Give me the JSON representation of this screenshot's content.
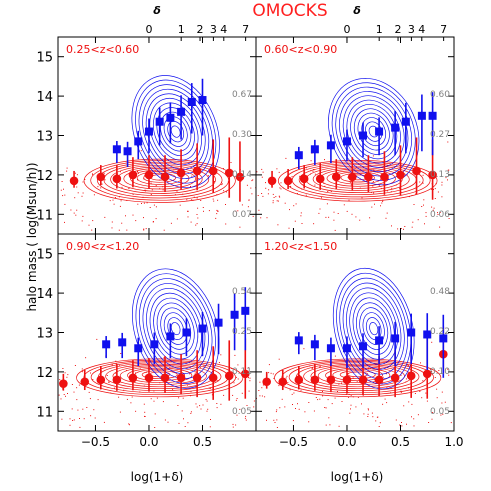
{
  "chart_data": {
    "type": "scatter",
    "title": "OMOCKS",
    "xlabel": "log(1+δ)",
    "ylabel": "halo mass ( log(Msun/h))",
    "top_axis_label": "δ",
    "top_ticks": [
      "0",
      "1",
      "2",
      "3",
      "4",
      "7"
    ],
    "top_tick_values": [
      0,
      1,
      2,
      3,
      4,
      7
    ],
    "xlim": [
      -0.85,
      1.0
    ],
    "ylim": [
      10.5,
      15.5
    ],
    "xticks": [
      -0.5,
      0.0,
      0.5,
      1.0
    ],
    "xtick_labels": [
      "−0.5",
      "0.0",
      "0.5",
      "1.0"
    ],
    "yticks": [
      11,
      12,
      13,
      14,
      15
    ],
    "ytick_labels": [
      "11",
      "12",
      "13",
      "14",
      "15"
    ],
    "colors": {
      "title": "#ff2020",
      "blue": "#1010ee",
      "red": "#ee1111",
      "frac": "#808080"
    },
    "panels": [
      {
        "label": "0.25<z<0.60",
        "fractions": [
          "0.67",
          "0.30",
          "0.14",
          "0.07"
        ],
        "blue_x": [
          -0.3,
          -0.2,
          -0.1,
          0.0,
          0.1,
          0.2,
          0.3,
          0.4,
          0.5
        ],
        "blue_y": [
          12.65,
          12.6,
          12.85,
          13.1,
          13.35,
          13.45,
          13.6,
          13.85,
          13.9
        ],
        "blue_err": [
          0.35,
          0.4,
          0.45,
          0.55,
          0.6,
          0.65,
          0.7,
          0.8,
          0.9
        ],
        "red_x": [
          -0.7,
          -0.45,
          -0.3,
          -0.15,
          0.0,
          0.15,
          0.3,
          0.45,
          0.6,
          0.75,
          0.85
        ],
        "red_y": [
          11.85,
          11.95,
          11.9,
          12.0,
          12.0,
          11.95,
          12.05,
          12.1,
          12.1,
          12.05,
          11.95
        ],
        "red_err": [
          0.25,
          0.3,
          0.35,
          0.45,
          0.5,
          0.55,
          0.6,
          0.7,
          0.8,
          0.9,
          0.9
        ],
        "blue_xs": 0.95,
        "blue_ys": 0.9,
        "blue_ang": -0.55,
        "red_xs": 1.0,
        "red_ys": 0.8
      },
      {
        "label": "0.60<z<0.90",
        "fractions": [
          "0.60",
          "0.27",
          "0.13",
          "0.06"
        ],
        "blue_x": [
          -0.45,
          -0.3,
          -0.15,
          0.0,
          0.15,
          0.3,
          0.45,
          0.55,
          0.7,
          0.8
        ],
        "blue_y": [
          12.5,
          12.65,
          12.75,
          12.85,
          13.0,
          13.1,
          13.2,
          13.35,
          13.5,
          13.5
        ],
        "blue_err": [
          0.35,
          0.4,
          0.45,
          0.5,
          0.55,
          0.6,
          0.7,
          0.8,
          0.9,
          1.0
        ],
        "red_x": [
          -0.7,
          -0.55,
          -0.4,
          -0.25,
          -0.1,
          0.05,
          0.2,
          0.35,
          0.5,
          0.65,
          0.8
        ],
        "red_y": [
          11.85,
          11.85,
          11.9,
          11.9,
          11.95,
          11.95,
          11.95,
          11.95,
          12.0,
          12.1,
          12.0
        ],
        "red_err": [
          0.25,
          0.3,
          0.35,
          0.4,
          0.45,
          0.5,
          0.55,
          0.65,
          0.75,
          0.85,
          0.9
        ],
        "blue_xs": 1.0,
        "blue_ys": 0.85,
        "blue_ang": -0.6,
        "red_xs": 1.05,
        "red_ys": 0.75
      },
      {
        "label": "0.90<z<1.20",
        "fractions": [
          "0.54",
          "0.25",
          "0.11",
          "0.05"
        ],
        "blue_x": [
          -0.4,
          -0.25,
          -0.1,
          0.05,
          0.2,
          0.35,
          0.5,
          0.65,
          0.8,
          0.9
        ],
        "blue_y": [
          12.7,
          12.75,
          12.6,
          12.7,
          12.9,
          13.0,
          13.1,
          13.25,
          13.45,
          13.55
        ],
        "blue_err": [
          0.35,
          0.4,
          0.45,
          0.5,
          0.55,
          0.6,
          0.7,
          0.8,
          0.9,
          1.0
        ],
        "red_x": [
          -0.8,
          -0.6,
          -0.45,
          -0.3,
          -0.15,
          0.0,
          0.15,
          0.3,
          0.45,
          0.6,
          0.75,
          0.9
        ],
        "red_y": [
          11.7,
          11.75,
          11.8,
          11.8,
          11.85,
          11.85,
          11.85,
          11.85,
          11.85,
          11.85,
          11.9,
          11.95
        ],
        "red_err": [
          0.25,
          0.3,
          0.35,
          0.4,
          0.45,
          0.5,
          0.55,
          0.6,
          0.7,
          0.8,
          0.9,
          0.9
        ],
        "blue_xs": 0.95,
        "blue_ys": 0.95,
        "blue_ang": -0.45,
        "red_xs": 1.1,
        "red_ys": 0.7
      },
      {
        "label": "1.20<z<1.50",
        "fractions": [
          "0.48",
          "0.22",
          "0.10",
          "0.05"
        ],
        "blue_x": [
          -0.45,
          -0.3,
          -0.15,
          0.0,
          0.15,
          0.3,
          0.45,
          0.6,
          0.75,
          0.9
        ],
        "blue_y": [
          12.8,
          12.7,
          12.6,
          12.6,
          12.65,
          12.8,
          12.85,
          13.0,
          12.95,
          12.85
        ],
        "blue_err": [
          0.35,
          0.4,
          0.45,
          0.5,
          0.55,
          0.6,
          0.7,
          0.8,
          0.9,
          1.0
        ],
        "red_x": [
          -0.75,
          -0.6,
          -0.45,
          -0.3,
          -0.15,
          0.0,
          0.15,
          0.3,
          0.45,
          0.6,
          0.75,
          0.9
        ],
        "red_y": [
          11.75,
          11.75,
          11.8,
          11.8,
          11.8,
          11.8,
          11.8,
          11.8,
          11.85,
          11.9,
          11.95,
          12.45
        ],
        "red_err": [
          0.25,
          0.3,
          0.35,
          0.4,
          0.45,
          0.5,
          0.55,
          0.6,
          0.7,
          0.8,
          0.9,
          0.7
        ],
        "blue_xs": 0.9,
        "blue_ys": 0.95,
        "blue_ang": -0.35,
        "red_xs": 1.1,
        "red_ys": 0.7
      }
    ]
  }
}
